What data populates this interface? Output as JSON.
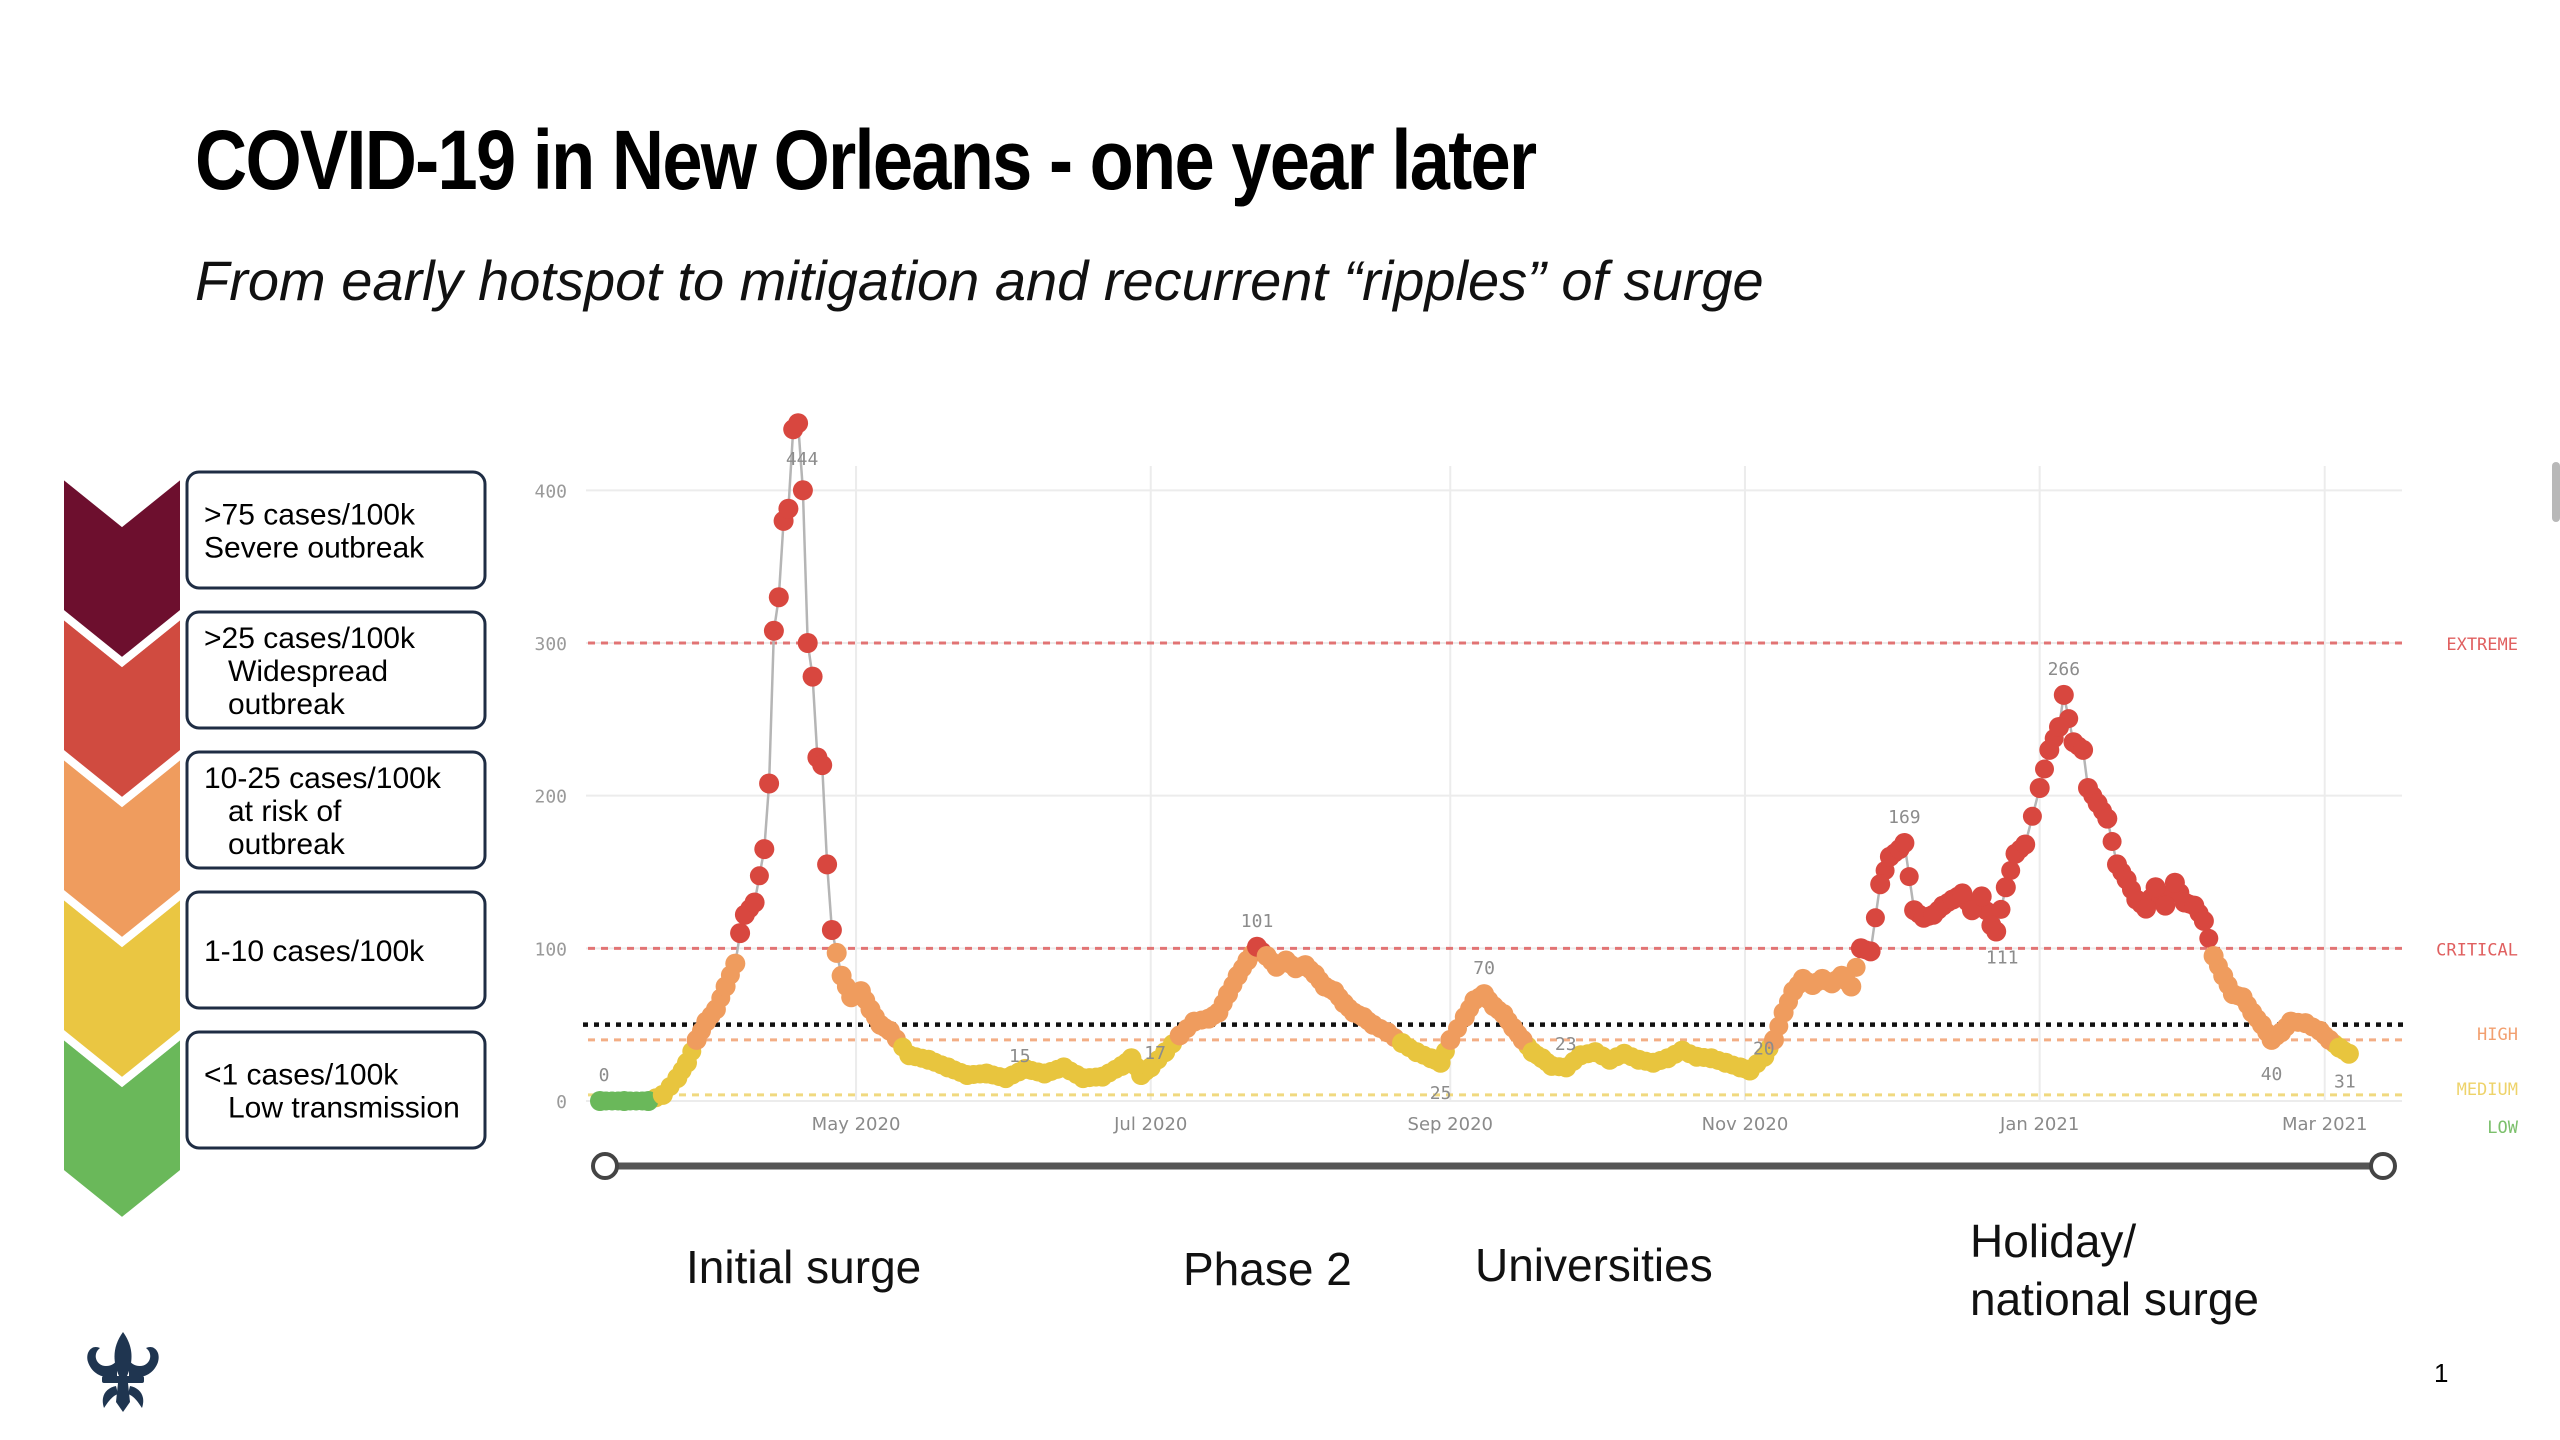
{
  "title": "COVID-19 in New Orleans - one year later",
  "subtitle": "From early hotspot to mitigation and recurrent “ripples” of surge",
  "legend": [
    {
      "lines": [
        ">75 cases/100k",
        "Severe outbreak"
      ],
      "color": "#6d0f2e"
    },
    {
      "lines": [
        ">25 cases/100k",
        "Widespread",
        "outbreak"
      ],
      "color": "#d04b40"
    },
    {
      "lines": [
        "10-25 cases/100k",
        "at risk of",
        "outbreak"
      ],
      "color": "#ef9c5e"
    },
    {
      "lines": [
        "1-10 cases/100k"
      ],
      "color": "#eac642"
    },
    {
      "lines": [
        "<1 cases/100k",
        "Low transmission"
      ],
      "color": "#6ab85a"
    }
  ],
  "periods": {
    "initial": "Initial surge",
    "phase2": "Phase 2",
    "universities": "Universities",
    "holiday": [
      "Holiday/",
      "national surge"
    ]
  },
  "page_number": "1",
  "chart_data": {
    "type": "scatter",
    "title": "",
    "xlabel": "",
    "ylabel": "",
    "x_range": [
      "2020-03-09",
      "2021-03-17"
    ],
    "ylim": [
      0,
      450
    ],
    "y_ticks": [
      0,
      100,
      200,
      300,
      400
    ],
    "x_ticks": [
      {
        "date": "2020-05-01",
        "label": "May 2020"
      },
      {
        "date": "2020-07-01",
        "label": "Jul 2020"
      },
      {
        "date": "2020-09-01",
        "label": "Sep 2020"
      },
      {
        "date": "2020-11-01",
        "label": "Nov 2020"
      },
      {
        "date": "2021-01-01",
        "label": "Jan 2021"
      },
      {
        "date": "2021-03-01",
        "label": "Mar 2021"
      }
    ],
    "thresholds": [
      {
        "value": 300,
        "label": "EXTREME",
        "color": "#e06060"
      },
      {
        "value": 100,
        "label": "CRITICAL",
        "color": "#e06060"
      },
      {
        "value": 40,
        "label": "HIGH",
        "color": "#f2a070"
      },
      {
        "value": 4,
        "label": "MEDIUM",
        "color": "#eed36a"
      },
      {
        "value": 0,
        "label": "LOW",
        "color": "#7cc06c"
      }
    ],
    "marker_line_value": 50,
    "series_points": [
      [
        "2020-03-09",
        0
      ],
      [
        "2020-03-14",
        0
      ],
      [
        "2020-03-19",
        0
      ],
      [
        "2020-03-22",
        4
      ],
      [
        "2020-03-25",
        15
      ],
      [
        "2020-03-27",
        25
      ],
      [
        "2020-03-29",
        40
      ],
      [
        "2020-03-31",
        52
      ],
      [
        "2020-04-02",
        60
      ],
      [
        "2020-04-04",
        75
      ],
      [
        "2020-04-06",
        90
      ],
      [
        "2020-04-07",
        110
      ],
      [
        "2020-04-08",
        122
      ],
      [
        "2020-04-10",
        130
      ],
      [
        "2020-04-12",
        165
      ],
      [
        "2020-04-13",
        208
      ],
      [
        "2020-04-14",
        308
      ],
      [
        "2020-04-15",
        330
      ],
      [
        "2020-04-16",
        380
      ],
      [
        "2020-04-17",
        388
      ],
      [
        "2020-04-18",
        440
      ],
      [
        "2020-04-19",
        444
      ],
      [
        "2020-04-20",
        400
      ],
      [
        "2020-04-21",
        300
      ],
      [
        "2020-04-22",
        278
      ],
      [
        "2020-04-23",
        225
      ],
      [
        "2020-04-24",
        220
      ],
      [
        "2020-04-25",
        155
      ],
      [
        "2020-04-26",
        112
      ],
      [
        "2020-04-27",
        97
      ],
      [
        "2020-04-28",
        82
      ],
      [
        "2020-04-30",
        68
      ],
      [
        "2020-05-02",
        72
      ],
      [
        "2020-05-04",
        60
      ],
      [
        "2020-05-06",
        50
      ],
      [
        "2020-05-08",
        46
      ],
      [
        "2020-05-12",
        30
      ],
      [
        "2020-05-16",
        27
      ],
      [
        "2020-05-20",
        22
      ],
      [
        "2020-05-24",
        17
      ],
      [
        "2020-05-28",
        18
      ],
      [
        "2020-06-01",
        15
      ],
      [
        "2020-06-05",
        21
      ],
      [
        "2020-06-09",
        18
      ],
      [
        "2020-06-13",
        22
      ],
      [
        "2020-06-17",
        15
      ],
      [
        "2020-06-21",
        16
      ],
      [
        "2020-06-25",
        23
      ],
      [
        "2020-06-27",
        28
      ],
      [
        "2020-06-29",
        17
      ],
      [
        "2020-07-01",
        22
      ],
      [
        "2020-07-04",
        32
      ],
      [
        "2020-07-07",
        43
      ],
      [
        "2020-07-10",
        52
      ],
      [
        "2020-07-13",
        54
      ],
      [
        "2020-07-15",
        58
      ],
      [
        "2020-07-17",
        70
      ],
      [
        "2020-07-19",
        82
      ],
      [
        "2020-07-21",
        92
      ],
      [
        "2020-07-23",
        101
      ],
      [
        "2020-07-25",
        95
      ],
      [
        "2020-07-27",
        88
      ],
      [
        "2020-07-29",
        92
      ],
      [
        "2020-07-31",
        87
      ],
      [
        "2020-08-02",
        89
      ],
      [
        "2020-08-04",
        83
      ],
      [
        "2020-08-06",
        75
      ],
      [
        "2020-08-08",
        72
      ],
      [
        "2020-08-10",
        64
      ],
      [
        "2020-08-12",
        58
      ],
      [
        "2020-08-14",
        55
      ],
      [
        "2020-08-16",
        50
      ],
      [
        "2020-08-19",
        45
      ],
      [
        "2020-08-22",
        38
      ],
      [
        "2020-08-25",
        32
      ],
      [
        "2020-08-28",
        28
      ],
      [
        "2020-08-30",
        25
      ],
      [
        "2020-09-01",
        40
      ],
      [
        "2020-09-04",
        55
      ],
      [
        "2020-09-06",
        66
      ],
      [
        "2020-09-08",
        70
      ],
      [
        "2020-09-10",
        62
      ],
      [
        "2020-09-12",
        57
      ],
      [
        "2020-09-14",
        48
      ],
      [
        "2020-09-16",
        40
      ],
      [
        "2020-09-18",
        32
      ],
      [
        "2020-09-20",
        28
      ],
      [
        "2020-09-22",
        23
      ],
      [
        "2020-09-25",
        22
      ],
      [
        "2020-09-28",
        30
      ],
      [
        "2020-10-01",
        32
      ],
      [
        "2020-10-04",
        27
      ],
      [
        "2020-10-07",
        31
      ],
      [
        "2020-10-10",
        27
      ],
      [
        "2020-10-13",
        25
      ],
      [
        "2020-10-16",
        28
      ],
      [
        "2020-10-19",
        33
      ],
      [
        "2020-10-22",
        29
      ],
      [
        "2020-10-25",
        28
      ],
      [
        "2020-10-28",
        25
      ],
      [
        "2020-10-31",
        22
      ],
      [
        "2020-11-02",
        20
      ],
      [
        "2020-11-05",
        29
      ],
      [
        "2020-11-07",
        40
      ],
      [
        "2020-11-09",
        58
      ],
      [
        "2020-11-11",
        72
      ],
      [
        "2020-11-13",
        80
      ],
      [
        "2020-11-15",
        76
      ],
      [
        "2020-11-17",
        80
      ],
      [
        "2020-11-19",
        77
      ],
      [
        "2020-11-21",
        82
      ],
      [
        "2020-11-23",
        75
      ],
      [
        "2020-11-25",
        100
      ],
      [
        "2020-11-27",
        98
      ],
      [
        "2020-11-29",
        142
      ],
      [
        "2020-12-01",
        160
      ],
      [
        "2020-12-03",
        165
      ],
      [
        "2020-12-04",
        169
      ],
      [
        "2020-12-06",
        125
      ],
      [
        "2020-12-08",
        120
      ],
      [
        "2020-12-10",
        122
      ],
      [
        "2020-12-12",
        128
      ],
      [
        "2020-12-14",
        132
      ],
      [
        "2020-12-16",
        136
      ],
      [
        "2020-12-18",
        125
      ],
      [
        "2020-12-20",
        134
      ],
      [
        "2020-12-22",
        115
      ],
      [
        "2020-12-23",
        111
      ],
      [
        "2020-12-25",
        140
      ],
      [
        "2020-12-27",
        162
      ],
      [
        "2020-12-29",
        168
      ],
      [
        "2021-01-01",
        205
      ],
      [
        "2021-01-03",
        230
      ],
      [
        "2021-01-05",
        245
      ],
      [
        "2021-01-06",
        266
      ],
      [
        "2021-01-08",
        235
      ],
      [
        "2021-01-10",
        230
      ],
      [
        "2021-01-11",
        205
      ],
      [
        "2021-01-13",
        195
      ],
      [
        "2021-01-15",
        185
      ],
      [
        "2021-01-17",
        155
      ],
      [
        "2021-01-19",
        145
      ],
      [
        "2021-01-21",
        132
      ],
      [
        "2021-01-23",
        126
      ],
      [
        "2021-01-25",
        140
      ],
      [
        "2021-01-27",
        128
      ],
      [
        "2021-01-29",
        143
      ],
      [
        "2021-01-31",
        130
      ],
      [
        "2021-02-02",
        128
      ],
      [
        "2021-02-04",
        118
      ],
      [
        "2021-02-06",
        95
      ],
      [
        "2021-02-08",
        82
      ],
      [
        "2021-02-10",
        70
      ],
      [
        "2021-02-12",
        68
      ],
      [
        "2021-02-14",
        58
      ],
      [
        "2021-02-16",
        50
      ],
      [
        "2021-02-18",
        40
      ],
      [
        "2021-02-20",
        45
      ],
      [
        "2021-02-22",
        52
      ],
      [
        "2021-02-25",
        51
      ],
      [
        "2021-02-28",
        46
      ],
      [
        "2021-03-02",
        40
      ],
      [
        "2021-03-04",
        35
      ],
      [
        "2021-03-06",
        31
      ]
    ],
    "annotations": [
      {
        "date": "2020-03-09",
        "value": 0,
        "label": "0"
      },
      {
        "date": "2020-04-19",
        "value": 444,
        "label": "444"
      },
      {
        "date": "2020-06-01",
        "value": 15,
        "label": "15"
      },
      {
        "date": "2020-06-29",
        "value": 17,
        "label": "17"
      },
      {
        "date": "2020-07-23",
        "value": 101,
        "label": "101"
      },
      {
        "date": "2020-08-30",
        "value": 25,
        "label": "25"
      },
      {
        "date": "2020-09-08",
        "value": 70,
        "label": "70"
      },
      {
        "date": "2020-09-22",
        "value": 23,
        "label": "23"
      },
      {
        "date": "2020-11-02",
        "value": 20,
        "label": "20"
      },
      {
        "date": "2020-12-04",
        "value": 169,
        "label": "169"
      },
      {
        "date": "2020-12-23",
        "value": 111,
        "label": "111"
      },
      {
        "date": "2021-01-06",
        "value": 266,
        "label": "266"
      },
      {
        "date": "2021-02-18",
        "value": 40,
        "label": "40"
      },
      {
        "date": "2021-03-06",
        "value": 31,
        "label": "31"
      }
    ]
  }
}
